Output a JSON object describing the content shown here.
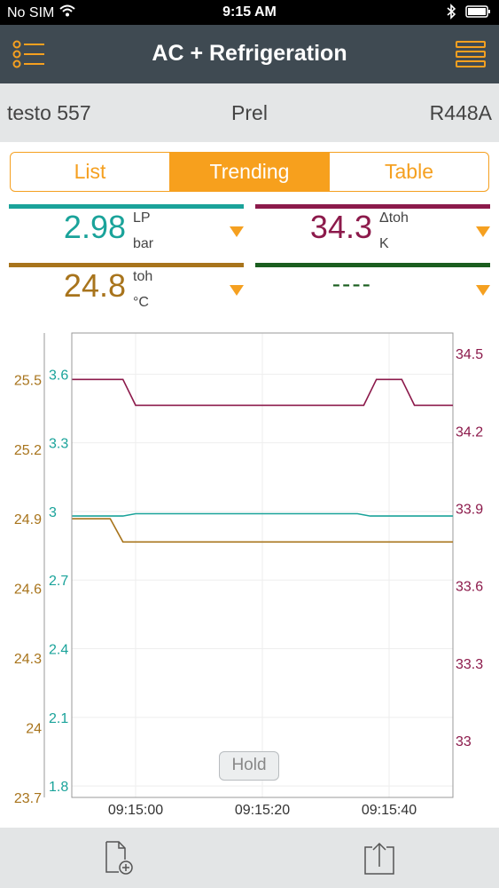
{
  "status_bar": {
    "carrier": "No SIM",
    "time": "9:15 AM",
    "icons": [
      "wifi-icon",
      "bluetooth-icon",
      "battery-icon"
    ]
  },
  "nav": {
    "title": "AC + Refrigeration",
    "left_icon": "list-settings-icon",
    "right_icon": "menu-icon"
  },
  "device": {
    "name": "testo 557",
    "mode": "Prel",
    "refrigerant": "R448A"
  },
  "tabs": [
    {
      "label": "List",
      "active": false
    },
    {
      "label": "Trending",
      "active": true
    },
    {
      "label": "Table",
      "active": false
    }
  ],
  "tiles": [
    {
      "value": "2.98",
      "label": "LP",
      "unit": "bar",
      "color": "#1aa39a"
    },
    {
      "value": "34.3",
      "label": "Δtoh",
      "unit": "K",
      "color": "#8c1a4b"
    },
    {
      "value": "24.8",
      "label": "toh",
      "unit": "°C",
      "color": "#a8741c"
    },
    {
      "value": "----",
      "label": "",
      "unit": "",
      "color": "#1b5e1f"
    }
  ],
  "hold_label": "Hold",
  "toolbar": {
    "icons": [
      "new-document-icon",
      "share-export-icon"
    ]
  },
  "colors": {
    "accent": "#f5a020",
    "nav_bg": "#3f4a52",
    "lp": "#1aa39a",
    "dtoh": "#8c1a4b",
    "toh": "#a8741c",
    "empty": "#1b5e1f"
  },
  "chart_data": {
    "type": "line",
    "x_ticks": [
      "09:15:00",
      "09:15:20",
      "09:15:40"
    ],
    "axes": {
      "toh": {
        "ticks": [
          "25.5",
          "25.2",
          "24.9",
          "24.6",
          "24.3",
          "24",
          "23.7"
        ],
        "ylim": [
          23.7,
          25.7
        ]
      },
      "lp": {
        "ticks": [
          "3.6",
          "3.3",
          "3",
          "2.7",
          "2.4",
          "2.1",
          "1.8"
        ],
        "ylim": [
          1.75,
          3.78
        ]
      },
      "dtoh": {
        "ticks": [
          "34.5",
          "34.2",
          "33.9",
          "33.6",
          "33.3",
          "33"
        ],
        "ylim": [
          32.78,
          34.58
        ]
      }
    },
    "series": [
      {
        "name": "Δtoh",
        "axis": "dtoh",
        "color": "#8c1a4b",
        "t": [
          -10,
          -2,
          0,
          36,
          38,
          42,
          44,
          60
        ],
        "values": [
          34.4,
          34.4,
          34.3,
          34.3,
          34.4,
          34.4,
          34.3,
          34.3
        ]
      },
      {
        "name": "LP",
        "axis": "lp",
        "color": "#1aa39a",
        "t": [
          -10,
          -2,
          0,
          35,
          37,
          60
        ],
        "values": [
          2.98,
          2.98,
          2.99,
          2.99,
          2.98,
          2.98
        ]
      },
      {
        "name": "toh",
        "axis": "toh",
        "color": "#a8741c",
        "t": [
          -10,
          -4,
          -2,
          60
        ],
        "values": [
          24.9,
          24.9,
          24.8,
          24.8
        ]
      }
    ]
  }
}
